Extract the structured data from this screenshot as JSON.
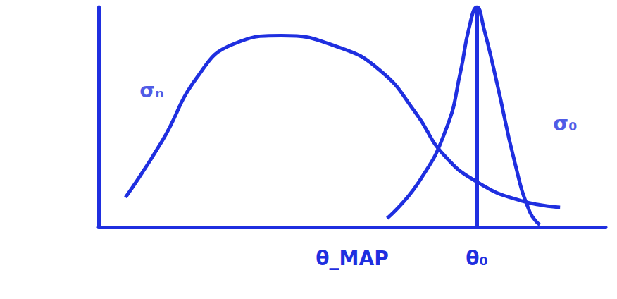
{
  "chart_data": {
    "type": "line",
    "color": "#1f2fe0",
    "xlim": [
      0,
      10
    ],
    "ylim": [
      0,
      10
    ],
    "xticks": [
      {
        "value": 5.0,
        "label": "θ_MAP"
      },
      {
        "value": 7.46,
        "label": "θ₀"
      }
    ],
    "tick_labels": "x",
    "grid": false,
    "vertical_line": 7.46,
    "series": [
      {
        "x": [
          0.53,
          1.25,
          1.94,
          2.64,
          3.6,
          4.7,
          5.56,
          6.25,
          6.8,
          7.5,
          8.33,
          9.1
        ],
        "values": [
          1.35,
          3.9,
          6.8,
          8.3,
          8.7,
          8.2,
          7.1,
          5.2,
          3.3,
          2.0,
          1.2,
          0.9
        ]
      },
      {
        "x": [
          5.69,
          6.3,
          6.86,
          7.14,
          7.3,
          7.46,
          7.6,
          7.86,
          8.2,
          8.5,
          8.7
        ],
        "values": [
          0.4,
          2.0,
          4.5,
          7.1,
          9.0,
          10.0,
          9.0,
          6.5,
          3.0,
          0.7,
          0.1
        ]
      }
    ],
    "annotations": [
      {
        "text": "σₙ",
        "x": 1.05,
        "y": 6.2
      },
      {
        "text": "σ₀",
        "x": 9.2,
        "y": 4.7
      }
    ]
  }
}
